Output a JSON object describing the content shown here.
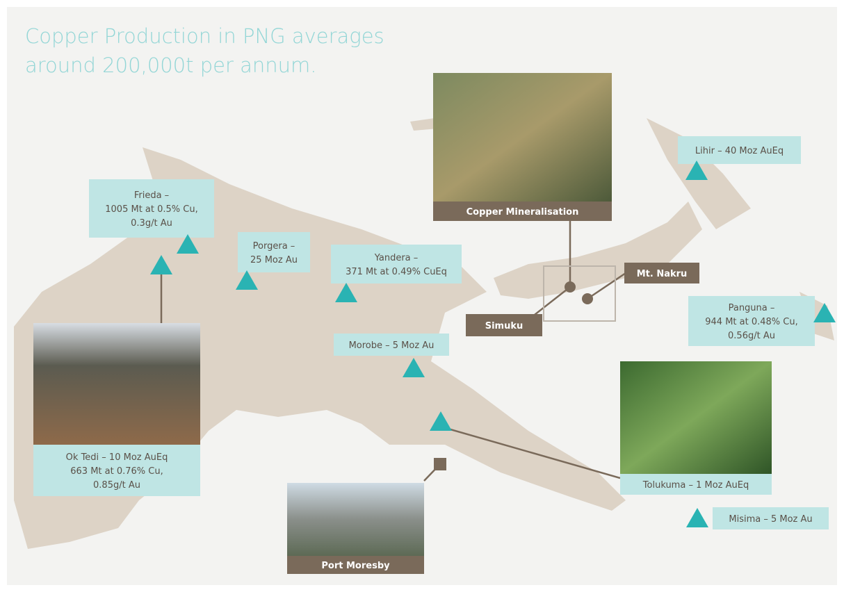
{
  "title": [
    "Copper Production in PNG averages",
    "around 200,000t per annum."
  ],
  "deposits": [
    {
      "lines": [
        "Frieda –",
        "1005 Mt at 0.5% Cu,",
        "0.3g/t Au"
      ]
    },
    {
      "lines": [
        "Porgera –",
        "25 Moz Au"
      ]
    },
    {
      "lines": [
        "Yandera –",
        "371 Mt at 0.49% CuEq"
      ]
    },
    {
      "lines": [
        "Morobe – 5 Moz Au"
      ]
    },
    {
      "lines": [
        "Lihir – 40 Moz AuEq"
      ]
    },
    {
      "lines": [
        "Panguna –",
        "944 Mt at 0.48% Cu,",
        "0.56g/t Au"
      ]
    },
    {
      "lines": [
        "Tolukuma – 1 Moz AuEq"
      ]
    },
    {
      "lines": [
        "Misima – 5 Moz Au"
      ]
    },
    {
      "lines": [
        "Ok Tedi – 10 Moz AuEq",
        "663 Mt at 0.76% Cu,",
        "0.85g/t Au"
      ]
    }
  ],
  "photos": [
    "Copper Mineralisation",
    "Port Moresby"
  ],
  "locations": [
    "Simuku",
    "Mt. Nakru"
  ]
}
